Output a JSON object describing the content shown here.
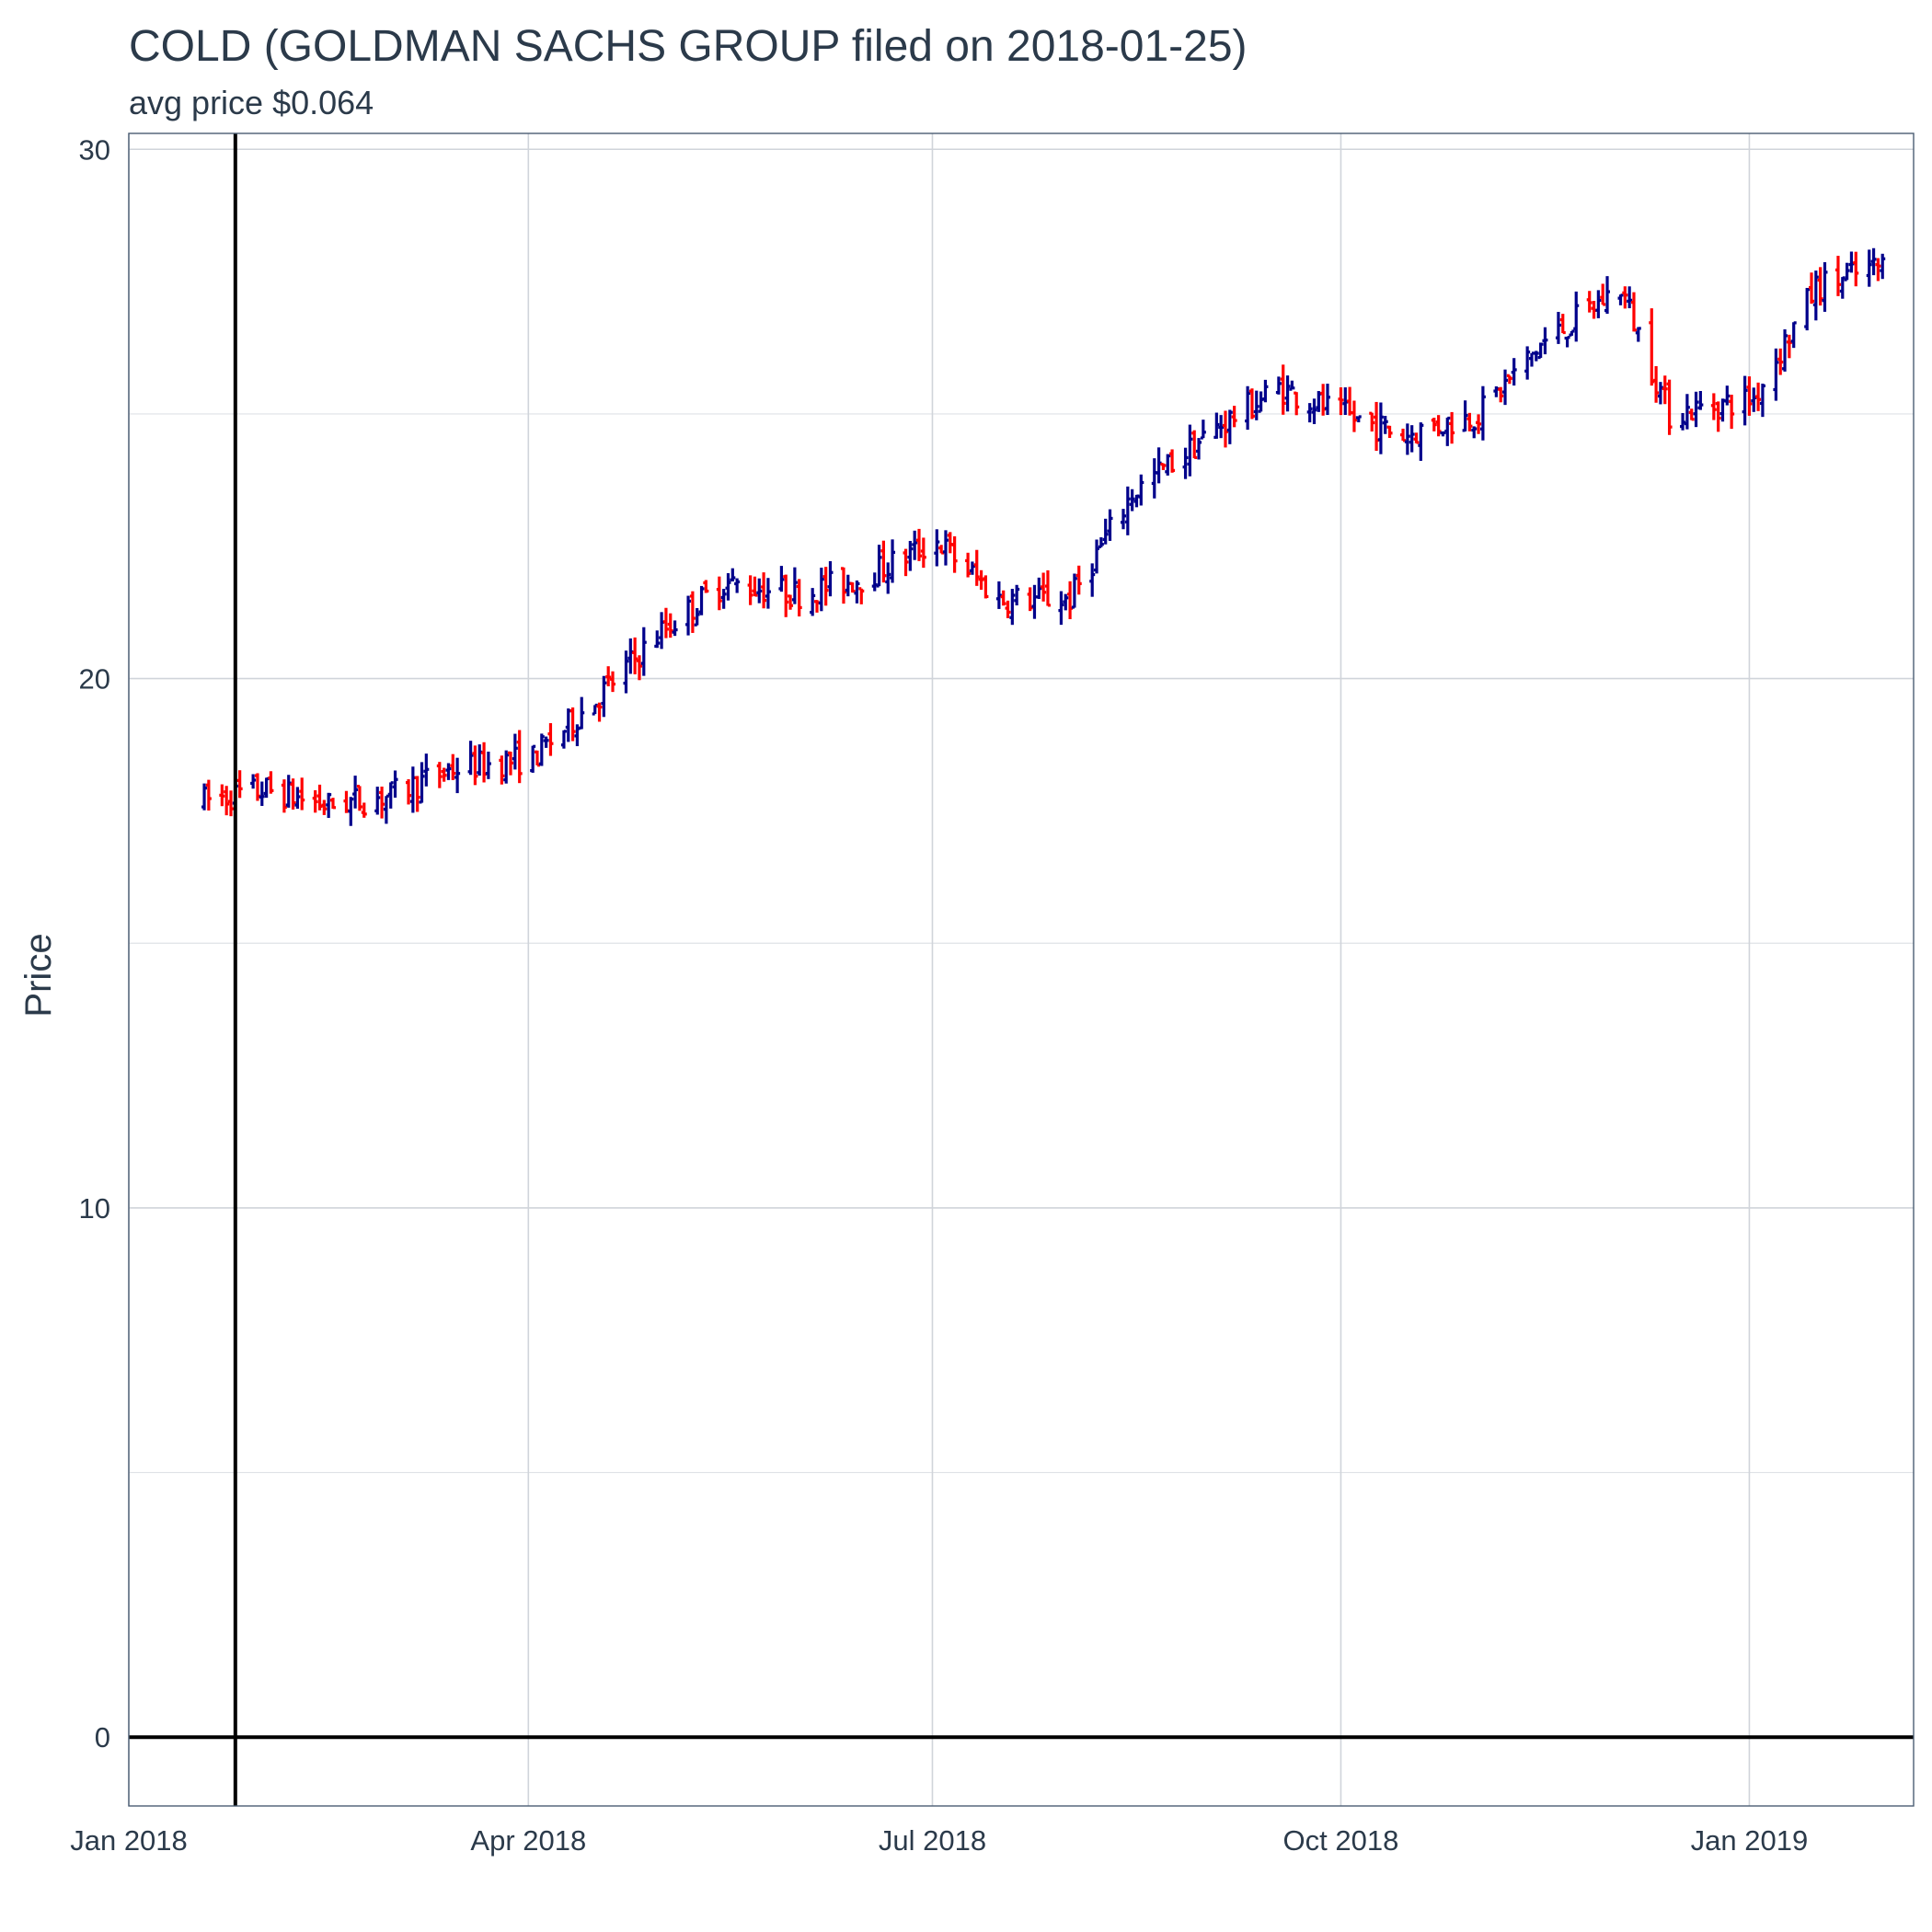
{
  "chart_data": {
    "type": "ohlc",
    "title": "COLD (GOLDMAN SACHS GROUP filed on 2018-01-25)",
    "subtitle": "avg price $0.064",
    "xlabel": "",
    "ylabel": "Price",
    "xlim": [
      "2018-01-01",
      "2019-02-07"
    ],
    "ylim": [
      -1.3,
      30.3
    ],
    "y_ticks": [
      0,
      10,
      20,
      30
    ],
    "y_tick_labels": [
      "0",
      "10",
      "20",
      "30"
    ],
    "y_minor_ticks": [
      5,
      15,
      25
    ],
    "x_ticks": [
      "2018-01-01",
      "2018-04-01",
      "2018-07-01",
      "2018-10-01",
      "2019-01-01"
    ],
    "x_tick_labels": [
      "Jan 2018",
      "Apr 2018",
      "Jul 2018",
      "Oct 2018",
      "Jan 2019"
    ],
    "grid": true,
    "reference_lines": {
      "vertical_date": "2018-01-25",
      "horizontal_value": 0
    },
    "colors": {
      "up": "#00008b",
      "down": "#ff0000",
      "reference": "#000000"
    },
    "monthly_anchors": [
      {
        "date": "2018-01-18",
        "close": 17.7
      },
      {
        "date": "2018-02-01",
        "close": 17.9
      },
      {
        "date": "2018-02-15",
        "close": 17.6
      },
      {
        "date": "2018-03-01",
        "close": 17.8
      },
      {
        "date": "2018-03-15",
        "close": 18.3
      },
      {
        "date": "2018-04-02",
        "close": 18.5
      },
      {
        "date": "2018-04-16",
        "close": 19.6
      },
      {
        "date": "2018-05-01",
        "close": 20.9
      },
      {
        "date": "2018-05-15",
        "close": 21.8
      },
      {
        "date": "2018-06-01",
        "close": 21.6
      },
      {
        "date": "2018-06-15",
        "close": 21.9
      },
      {
        "date": "2018-07-02",
        "close": 22.6
      },
      {
        "date": "2018-07-16",
        "close": 21.5
      },
      {
        "date": "2018-08-01",
        "close": 21.5
      },
      {
        "date": "2018-08-15",
        "close": 23.5
      },
      {
        "date": "2018-09-04",
        "close": 24.8
      },
      {
        "date": "2018-09-17",
        "close": 25.5
      },
      {
        "date": "2018-10-01",
        "close": 25.0
      },
      {
        "date": "2018-10-15",
        "close": 24.6
      },
      {
        "date": "2018-11-01",
        "close": 25.0
      },
      {
        "date": "2018-11-15",
        "close": 26.3
      },
      {
        "date": "2018-12-03",
        "close": 27.4
      },
      {
        "date": "2018-12-14",
        "close": 25.0
      },
      {
        "date": "2019-01-02",
        "close": 25.3
      },
      {
        "date": "2019-01-16",
        "close": 27.4
      },
      {
        "date": "2019-01-31",
        "close": 27.8
      }
    ]
  }
}
